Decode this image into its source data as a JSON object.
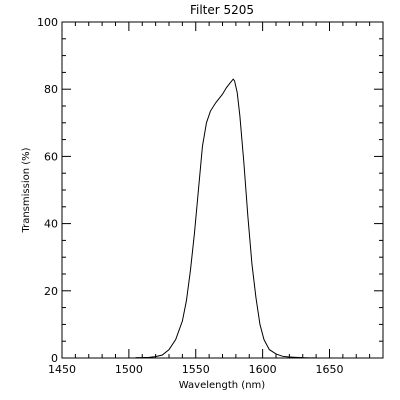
{
  "chart_data": {
    "type": "line",
    "title": "Filter 5205",
    "xlabel": "Wavelength (nm)",
    "ylabel": "Transmission (%)",
    "xlim": [
      1450,
      1690
    ],
    "ylim": [
      0,
      100
    ],
    "x_ticks": [
      1450,
      1500,
      1550,
      1600,
      1650
    ],
    "y_ticks": [
      0,
      20,
      40,
      60,
      80,
      100
    ],
    "x_minor_step": 10,
    "y_minor_step": 5,
    "grid": false,
    "legend": "none",
    "line_color": "#000000",
    "series": [
      {
        "x": [
          1505,
          1510,
          1515,
          1520,
          1525,
          1530,
          1535,
          1540,
          1543,
          1546,
          1549,
          1552,
          1555,
          1558,
          1561,
          1565,
          1570,
          1573,
          1576,
          1578,
          1579,
          1581,
          1583,
          1586,
          1589,
          1592,
          1595,
          1598,
          1601,
          1605,
          1610,
          1615,
          1620,
          1625,
          1630,
          1635,
          1640
        ],
        "y": [
          0.1,
          0.1,
          0.2,
          0.4,
          0.9,
          2.5,
          5.5,
          11,
          17,
          26,
          37,
          50,
          63,
          70,
          73.5,
          76,
          78.5,
          80.5,
          82,
          83,
          82.5,
          79,
          72,
          58,
          42,
          28,
          18,
          10,
          5.5,
          2.5,
          1.2,
          0.5,
          0.3,
          0.2,
          0.1,
          0.05,
          0.05
        ]
      }
    ]
  }
}
